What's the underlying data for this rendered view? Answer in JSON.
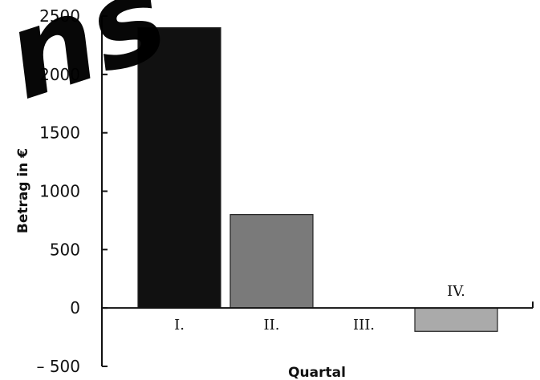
{
  "chart_data": {
    "type": "bar",
    "categories": [
      "I.",
      "II.",
      "III.",
      "IV."
    ],
    "values": [
      2400,
      800,
      0,
      -200
    ],
    "bar_colors": [
      "#111111",
      "#7a7a7a",
      "#ffffff",
      "#aaaaaa"
    ],
    "ylabel": "Betrag in €",
    "xlabel": "Quartal",
    "ylim": [
      -500,
      2500
    ],
    "yticks": [
      2500,
      2000,
      1500,
      1000,
      500,
      0,
      -500
    ],
    "ytick_labels": [
      "2500",
      "2000",
      "1500",
      "1000",
      "500",
      "0",
      "– 500"
    ],
    "grid": false
  },
  "watermark": {
    "text": "ns"
  }
}
